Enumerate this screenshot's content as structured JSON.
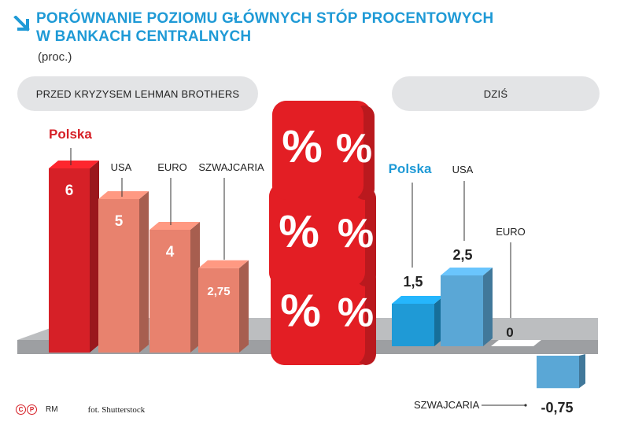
{
  "title": {
    "line1": "PORÓWNANIE POZIOMU GŁÓWNYCH STÓP PROCENTOWYCH",
    "line2": "W BANKACH CENTRALNYCH"
  },
  "unit": "(proc.)",
  "panels": {
    "before": "PRZED KRYZYSEM LEHMAN BROTHERS",
    "today": "DZIŚ"
  },
  "footer": {
    "copyright_c": "C",
    "copyright_p": "P",
    "author": "RM",
    "photo": "fot. Shutterstock"
  },
  "dice_symbol": "%",
  "colors": {
    "title": "#1f9ad6",
    "polska_before": "#d62027",
    "others_before": "#e8826e",
    "polska_today": "#1f9ad6",
    "others_today": "#5aa7d6",
    "zero": "#ffffff",
    "platform": "#a7a9ac",
    "dice": "#e31e24"
  },
  "chart_data": [
    {
      "type": "bar",
      "panel": "PRZED KRYZYSEM LEHMAN BROTHERS",
      "categories": [
        "Polska",
        "USA",
        "EURO",
        "SZWAJCARIA"
      ],
      "values": [
        6,
        5,
        4,
        2.75
      ],
      "labels": [
        "6",
        "5",
        "4",
        "2,75"
      ],
      "highlight": "Polska"
    },
    {
      "type": "bar",
      "panel": "DZIŚ",
      "categories": [
        "Polska",
        "USA",
        "EURO",
        "SZWAJCARIA"
      ],
      "values": [
        1.5,
        2.5,
        0,
        -0.75
      ],
      "labels": [
        "1,5",
        "2,5",
        "0",
        "-0,75"
      ],
      "highlight": "Polska"
    }
  ]
}
